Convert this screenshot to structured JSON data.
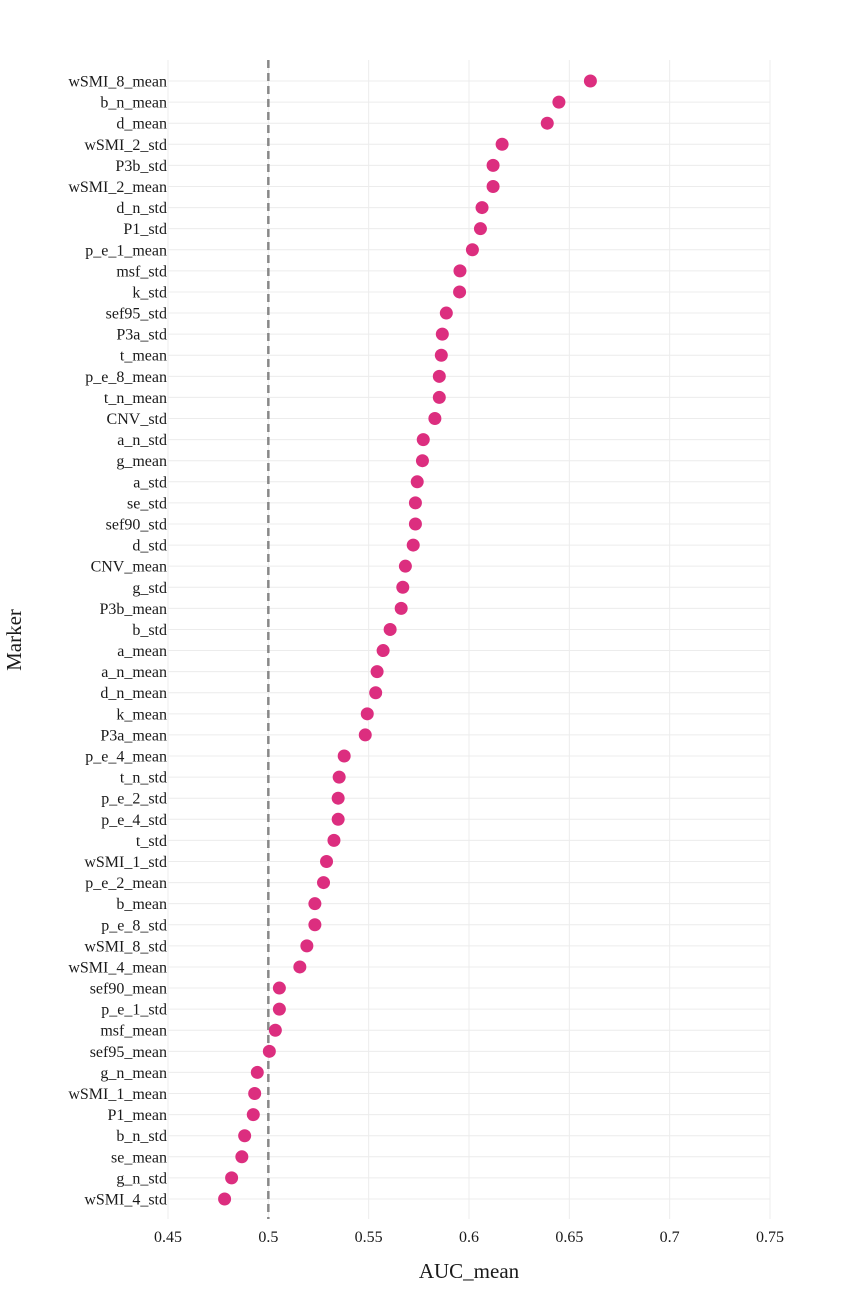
{
  "chart_data": {
    "type": "scatter",
    "xlabel": "AUC_mean",
    "ylabel": "Marker",
    "xlim": [
      0.45,
      0.75
    ],
    "xticks": [
      0.45,
      0.5,
      0.55,
      0.6,
      0.65,
      0.7,
      0.75
    ],
    "xtick_labels": [
      "0.45",
      "0.5",
      "0.55",
      "0.6",
      "0.65",
      "0.7",
      "0.75"
    ],
    "reference_line": 0.5,
    "grid": true,
    "point_color": "#dc2e7f",
    "reference_line_color": "#888888",
    "categories": [
      "wSMI_8_mean",
      "b_n_mean",
      "d_mean",
      "wSMI_2_std",
      "P3b_std",
      "wSMI_2_mean",
      "d_n_std",
      "P1_std",
      "p_e_1_mean",
      "msf_std",
      "k_std",
      "sef95_std",
      "P3a_std",
      "t_mean",
      "p_e_8_mean",
      "t_n_mean",
      "CNV_std",
      "a_n_std",
      "g_mean",
      "a_std",
      "se_std",
      "sef90_std",
      "d_std",
      "CNV_mean",
      "g_std",
      "P3b_mean",
      "b_std",
      "a_mean",
      "a_n_mean",
      "d_n_mean",
      "k_mean",
      "P3a_mean",
      "p_e_4_mean",
      "t_n_std",
      "p_e_2_std",
      "p_e_4_std",
      "t_std",
      "wSMI_1_std",
      "p_e_2_mean",
      "b_mean",
      "p_e_8_std",
      "wSMI_8_std",
      "wSMI_4_mean",
      "sef90_mean",
      "p_e_1_std",
      "msf_mean",
      "sef95_mean",
      "g_n_mean",
      "wSMI_1_mean",
      "P1_mean",
      "b_n_std",
      "se_mean",
      "g_n_std",
      "wSMI_4_std"
    ],
    "values": [
      0.6605,
      0.6448,
      0.639,
      0.6165,
      0.612,
      0.612,
      0.6065,
      0.6057,
      0.6017,
      0.5955,
      0.5953,
      0.5887,
      0.5867,
      0.5862,
      0.5852,
      0.5852,
      0.583,
      0.5772,
      0.5768,
      0.5742,
      0.5733,
      0.5733,
      0.5722,
      0.5683,
      0.567,
      0.5662,
      0.5607,
      0.5572,
      0.5542,
      0.5535,
      0.5493,
      0.5483,
      0.5378,
      0.5353,
      0.5348,
      0.5348,
      0.5327,
      0.529,
      0.5275,
      0.5232,
      0.5232,
      0.5192,
      0.5157,
      0.5055,
      0.5055,
      0.5035,
      0.5005,
      0.4945,
      0.4932,
      0.4925,
      0.4882,
      0.4868,
      0.4817,
      0.4782
    ]
  }
}
